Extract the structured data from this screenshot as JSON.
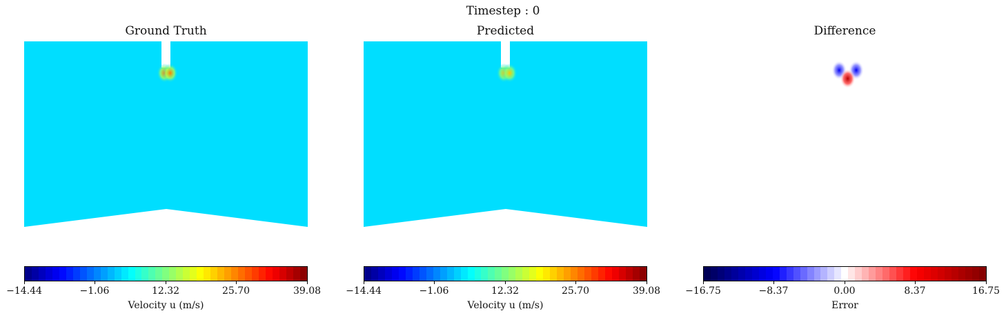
{
  "figure": {
    "suptitle": "Timestep :  0"
  },
  "chart_data": [
    {
      "type": "heatmap",
      "title": "Ground Truth",
      "field": "Velocity u",
      "background_value": 3.9,
      "hotspots": [
        {
          "x": 0.495,
          "y": 0.17,
          "value": 26.0
        },
        {
          "x": 0.515,
          "y": 0.17,
          "value": 26.0
        }
      ],
      "colormap": "jet",
      "colorbar": {
        "label": "Velocity u (m/s)",
        "range": [
          -14.44,
          39.08
        ],
        "ticks": [
          "−14.44",
          "−1.06",
          "12.32",
          "25.70",
          "39.08"
        ]
      }
    },
    {
      "type": "heatmap",
      "title": "Predicted",
      "field": "Velocity u",
      "background_value": 3.9,
      "hotspots": [
        {
          "x": 0.495,
          "y": 0.17,
          "value": 22.0
        },
        {
          "x": 0.515,
          "y": 0.17,
          "value": 22.0
        }
      ],
      "colormap": "jet",
      "colorbar": {
        "label": "Velocity u (m/s)",
        "range": [
          -14.44,
          39.08
        ],
        "ticks": [
          "−14.44",
          "−1.06",
          "12.32",
          "25.70",
          "39.08"
        ]
      }
    },
    {
      "type": "heatmap",
      "title": "Difference",
      "field": "Error",
      "background_value": 0.0,
      "hotspots": [
        {
          "x": 0.48,
          "y": 0.155,
          "value": -9.0
        },
        {
          "x": 0.54,
          "y": 0.155,
          "value": -9.0
        },
        {
          "x": 0.51,
          "y": 0.2,
          "value": 13.0
        }
      ],
      "colormap": "seismic",
      "colorbar": {
        "label": "Error",
        "range": [
          -16.75,
          16.75
        ],
        "ticks": [
          "−16.75",
          "−8.37",
          "0.00",
          "8.37",
          "16.75"
        ]
      }
    }
  ]
}
